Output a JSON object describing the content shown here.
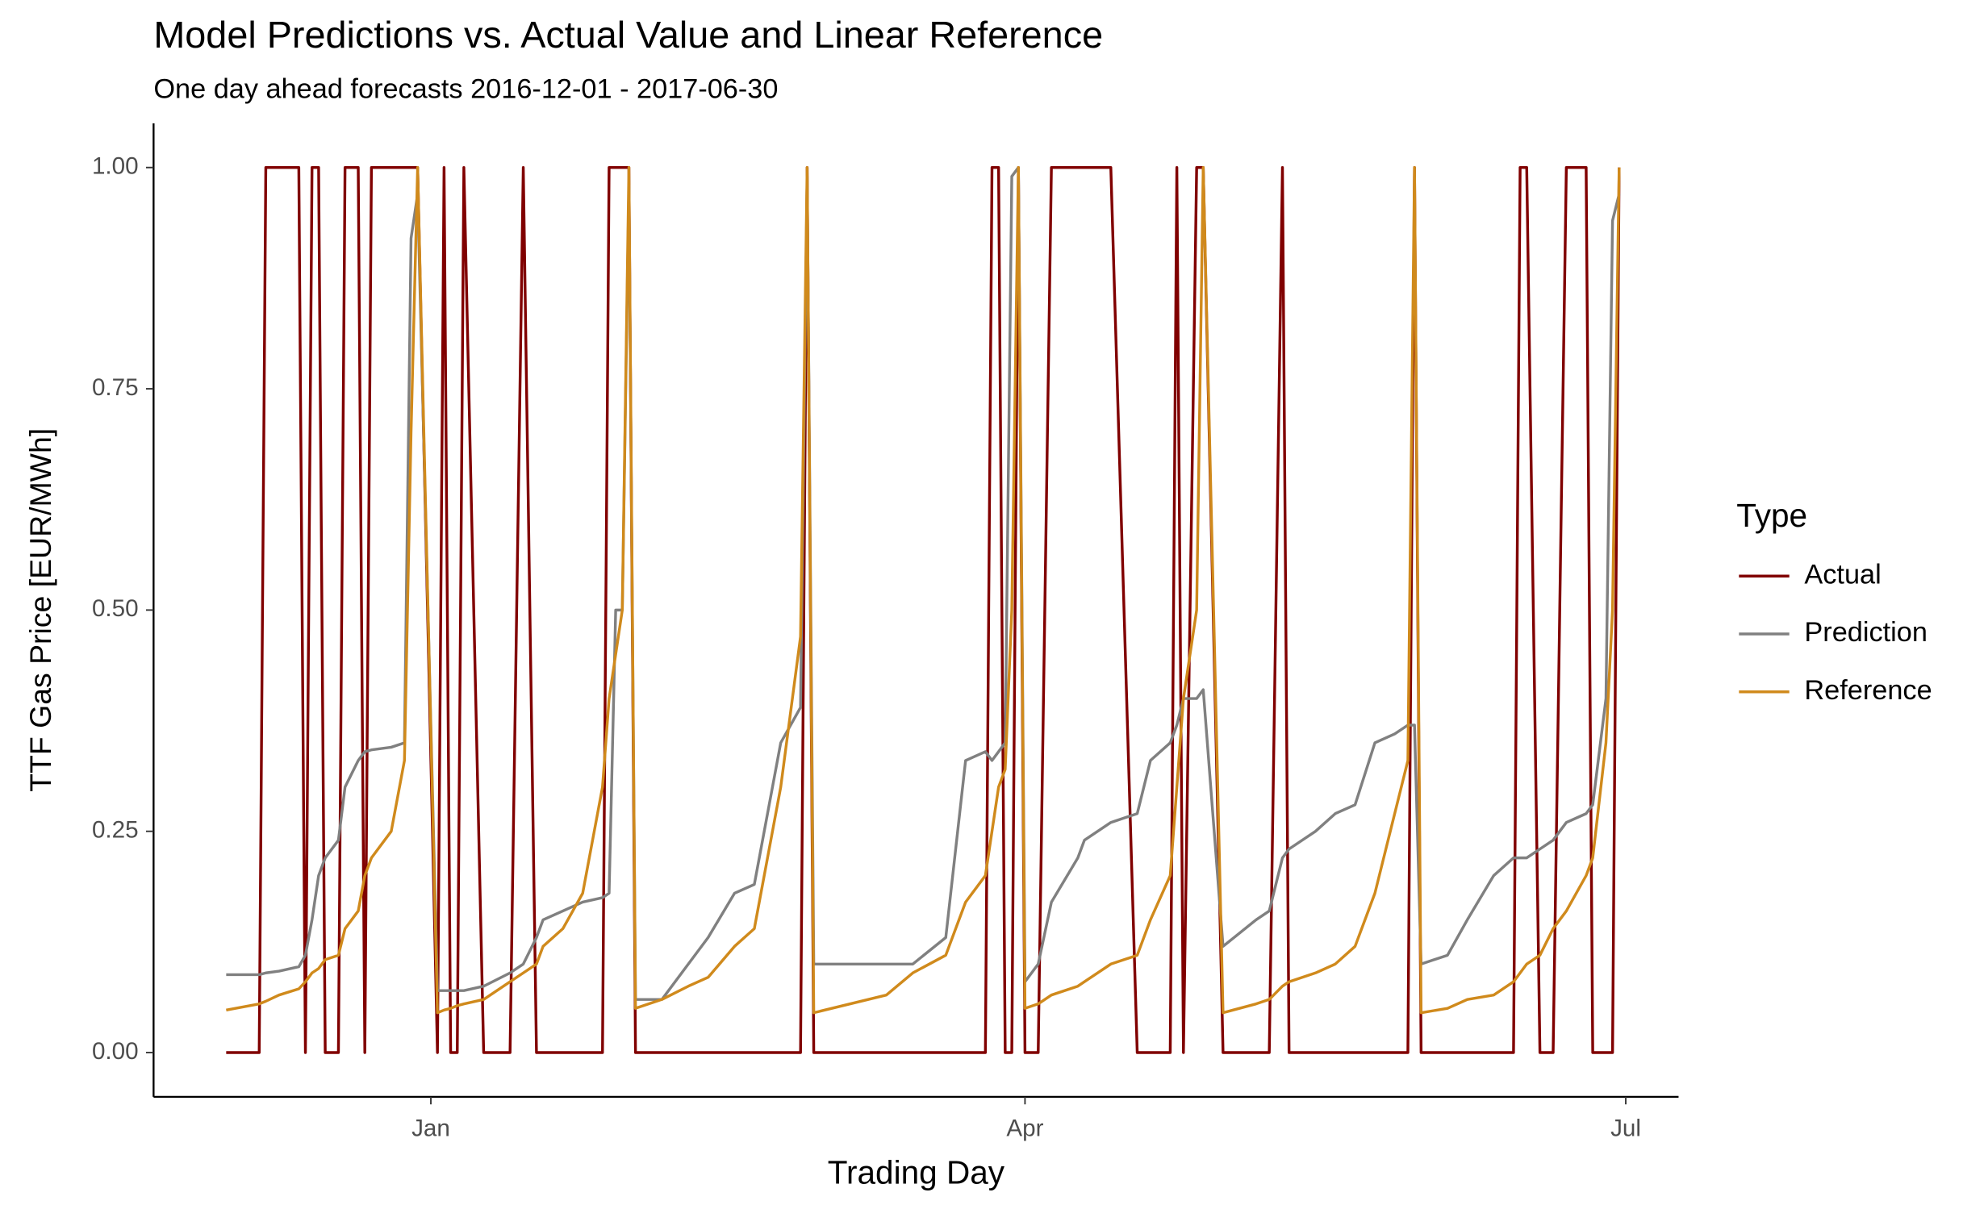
{
  "chart_data": {
    "type": "line",
    "title": "Model Predictions vs. Actual Value and Linear Reference",
    "subtitle": "One day ahead forecasts 2016-12-01 - 2017-06-30",
    "x_label": "Trading Day",
    "y_label": "TTF Gas Price [EUR/MWh]",
    "legend_title": "Type",
    "legend": "right",
    "grid": false,
    "x": [
      "2016-12-01",
      "2016-12-06",
      "2016-12-07",
      "2016-12-09",
      "2016-12-12",
      "2016-12-13",
      "2016-12-14",
      "2016-12-15",
      "2016-12-16",
      "2016-12-18",
      "2016-12-19",
      "2016-12-21",
      "2016-12-22",
      "2016-12-23",
      "2016-12-26",
      "2016-12-28",
      "2016-12-29",
      "2016-12-30",
      "2017-01-02",
      "2017-01-03",
      "2017-01-04",
      "2017-01-05",
      "2017-01-06",
      "2017-01-09",
      "2017-01-13",
      "2017-01-15",
      "2017-01-17",
      "2017-01-18",
      "2017-01-21",
      "2017-01-24",
      "2017-01-27",
      "2017-01-28",
      "2017-01-29",
      "2017-01-30",
      "2017-01-31",
      "2017-02-01",
      "2017-02-05",
      "2017-02-09",
      "2017-02-12",
      "2017-02-16",
      "2017-02-19",
      "2017-02-23",
      "2017-02-26",
      "2017-02-27",
      "2017-02-28",
      "2017-03-11",
      "2017-03-15",
      "2017-03-20",
      "2017-03-23",
      "2017-03-26",
      "2017-03-27",
      "2017-03-28",
      "2017-03-29",
      "2017-03-30",
      "2017-03-31",
      "2017-04-01",
      "2017-04-03",
      "2017-04-05",
      "2017-04-09",
      "2017-04-10",
      "2017-04-14",
      "2017-04-18",
      "2017-04-20",
      "2017-04-23",
      "2017-04-24",
      "2017-04-25",
      "2017-04-27",
      "2017-04-28",
      "2017-05-01",
      "2017-05-06",
      "2017-05-08",
      "2017-05-10",
      "2017-05-11",
      "2017-05-15",
      "2017-05-18",
      "2017-05-21",
      "2017-05-24",
      "2017-05-27",
      "2017-05-29",
      "2017-05-30",
      "2017-05-31",
      "2017-06-04",
      "2017-06-07",
      "2017-06-11",
      "2017-06-14",
      "2017-06-15",
      "2017-06-16",
      "2017-06-18",
      "2017-06-20",
      "2017-06-22",
      "2017-06-25",
      "2017-06-26",
      "2017-06-28",
      "2017-06-29",
      "2017-06-30"
    ],
    "series": [
      {
        "name": "Actual",
        "color": "#800000",
        "values": [
          0,
          0,
          1,
          1,
          1,
          0,
          1,
          1,
          0,
          0,
          1,
          1,
          0,
          1,
          1,
          1,
          1,
          1,
          0,
          1,
          0,
          0,
          1,
          0,
          0,
          1,
          0,
          0,
          0,
          0,
          0,
          1,
          1,
          1,
          1,
          0,
          0,
          0,
          0,
          0,
          0,
          0,
          0,
          1,
          0,
          0,
          0,
          0,
          0,
          0,
          1,
          1,
          0,
          0,
          1,
          0,
          0,
          1,
          1,
          1,
          1,
          0,
          0,
          0,
          1,
          0,
          1,
          1,
          0,
          0,
          0,
          1,
          0,
          0,
          0,
          0,
          0,
          0,
          0,
          1,
          0,
          0,
          0,
          0,
          0,
          1,
          1,
          0,
          0,
          1,
          1,
          0,
          0,
          0,
          1
        ]
      },
      {
        "name": "Prediction",
        "color": "#808080",
        "values": [
          0.088,
          0.088,
          0.09,
          0.092,
          0.097,
          0.11,
          0.15,
          0.2,
          0.22,
          0.24,
          0.3,
          0.33,
          0.34,
          0.342,
          0.345,
          0.35,
          0.92,
          0.97,
          0.07,
          0.07,
          0.07,
          0.07,
          0.07,
          0.075,
          0.09,
          0.1,
          0.13,
          0.15,
          0.16,
          0.17,
          0.175,
          0.18,
          0.5,
          0.5,
          0.98,
          0.06,
          0.06,
          0.1,
          0.13,
          0.18,
          0.19,
          0.35,
          0.39,
          0.99,
          0.1,
          0.1,
          0.1,
          0.13,
          0.33,
          0.34,
          0.33,
          0.34,
          0.35,
          0.99,
          1.0,
          0.08,
          0.1,
          0.17,
          0.22,
          0.24,
          0.26,
          0.27,
          0.33,
          0.35,
          0.37,
          0.4,
          0.4,
          0.41,
          0.12,
          0.15,
          0.16,
          0.22,
          0.23,
          0.25,
          0.27,
          0.28,
          0.35,
          0.36,
          0.37,
          0.37,
          0.1,
          0.11,
          0.15,
          0.2,
          0.22,
          0.22,
          0.22,
          0.23,
          0.24,
          0.26,
          0.27,
          0.28,
          0.4,
          0.94,
          0.97
        ]
      },
      {
        "name": "Reference",
        "color": "#d08a1c",
        "values": [
          0.048,
          0.055,
          0.058,
          0.065,
          0.072,
          0.08,
          0.09,
          0.095,
          0.105,
          0.11,
          0.14,
          0.16,
          0.2,
          0.22,
          0.25,
          0.33,
          0.7,
          1.0,
          0.045,
          0.048,
          0.05,
          0.053,
          0.055,
          0.06,
          0.08,
          0.09,
          0.1,
          0.12,
          0.14,
          0.18,
          0.3,
          0.4,
          0.45,
          0.5,
          1.0,
          0.05,
          0.06,
          0.075,
          0.085,
          0.12,
          0.14,
          0.3,
          0.47,
          1.0,
          0.045,
          0.065,
          0.09,
          0.11,
          0.17,
          0.2,
          0.25,
          0.3,
          0.32,
          0.5,
          1.0,
          0.05,
          0.055,
          0.065,
          0.075,
          0.08,
          0.1,
          0.11,
          0.15,
          0.2,
          0.3,
          0.4,
          0.5,
          1.0,
          0.045,
          0.055,
          0.06,
          0.075,
          0.08,
          0.09,
          0.1,
          0.12,
          0.18,
          0.27,
          0.33,
          1.0,
          0.045,
          0.05,
          0.06,
          0.065,
          0.08,
          0.09,
          0.1,
          0.11,
          0.14,
          0.16,
          0.2,
          0.22,
          0.35,
          0.5,
          1.0
        ]
      }
    ],
    "xlim": [
      "2016-11-20",
      "2017-07-09"
    ],
    "xticks": [
      {
        "value": "2017-01-01",
        "label": "Jan"
      },
      {
        "value": "2017-04-01",
        "label": "Apr"
      },
      {
        "value": "2017-07-01",
        "label": "Jul"
      }
    ],
    "ylim": [
      -0.05,
      1.05
    ],
    "yticks": [
      {
        "value": 0,
        "label": "0.00"
      },
      {
        "value": 0.25,
        "label": "0.25"
      },
      {
        "value": 0.5,
        "label": "0.50"
      },
      {
        "value": 0.75,
        "label": "0.75"
      },
      {
        "value": 1,
        "label": "1.00"
      }
    ]
  }
}
